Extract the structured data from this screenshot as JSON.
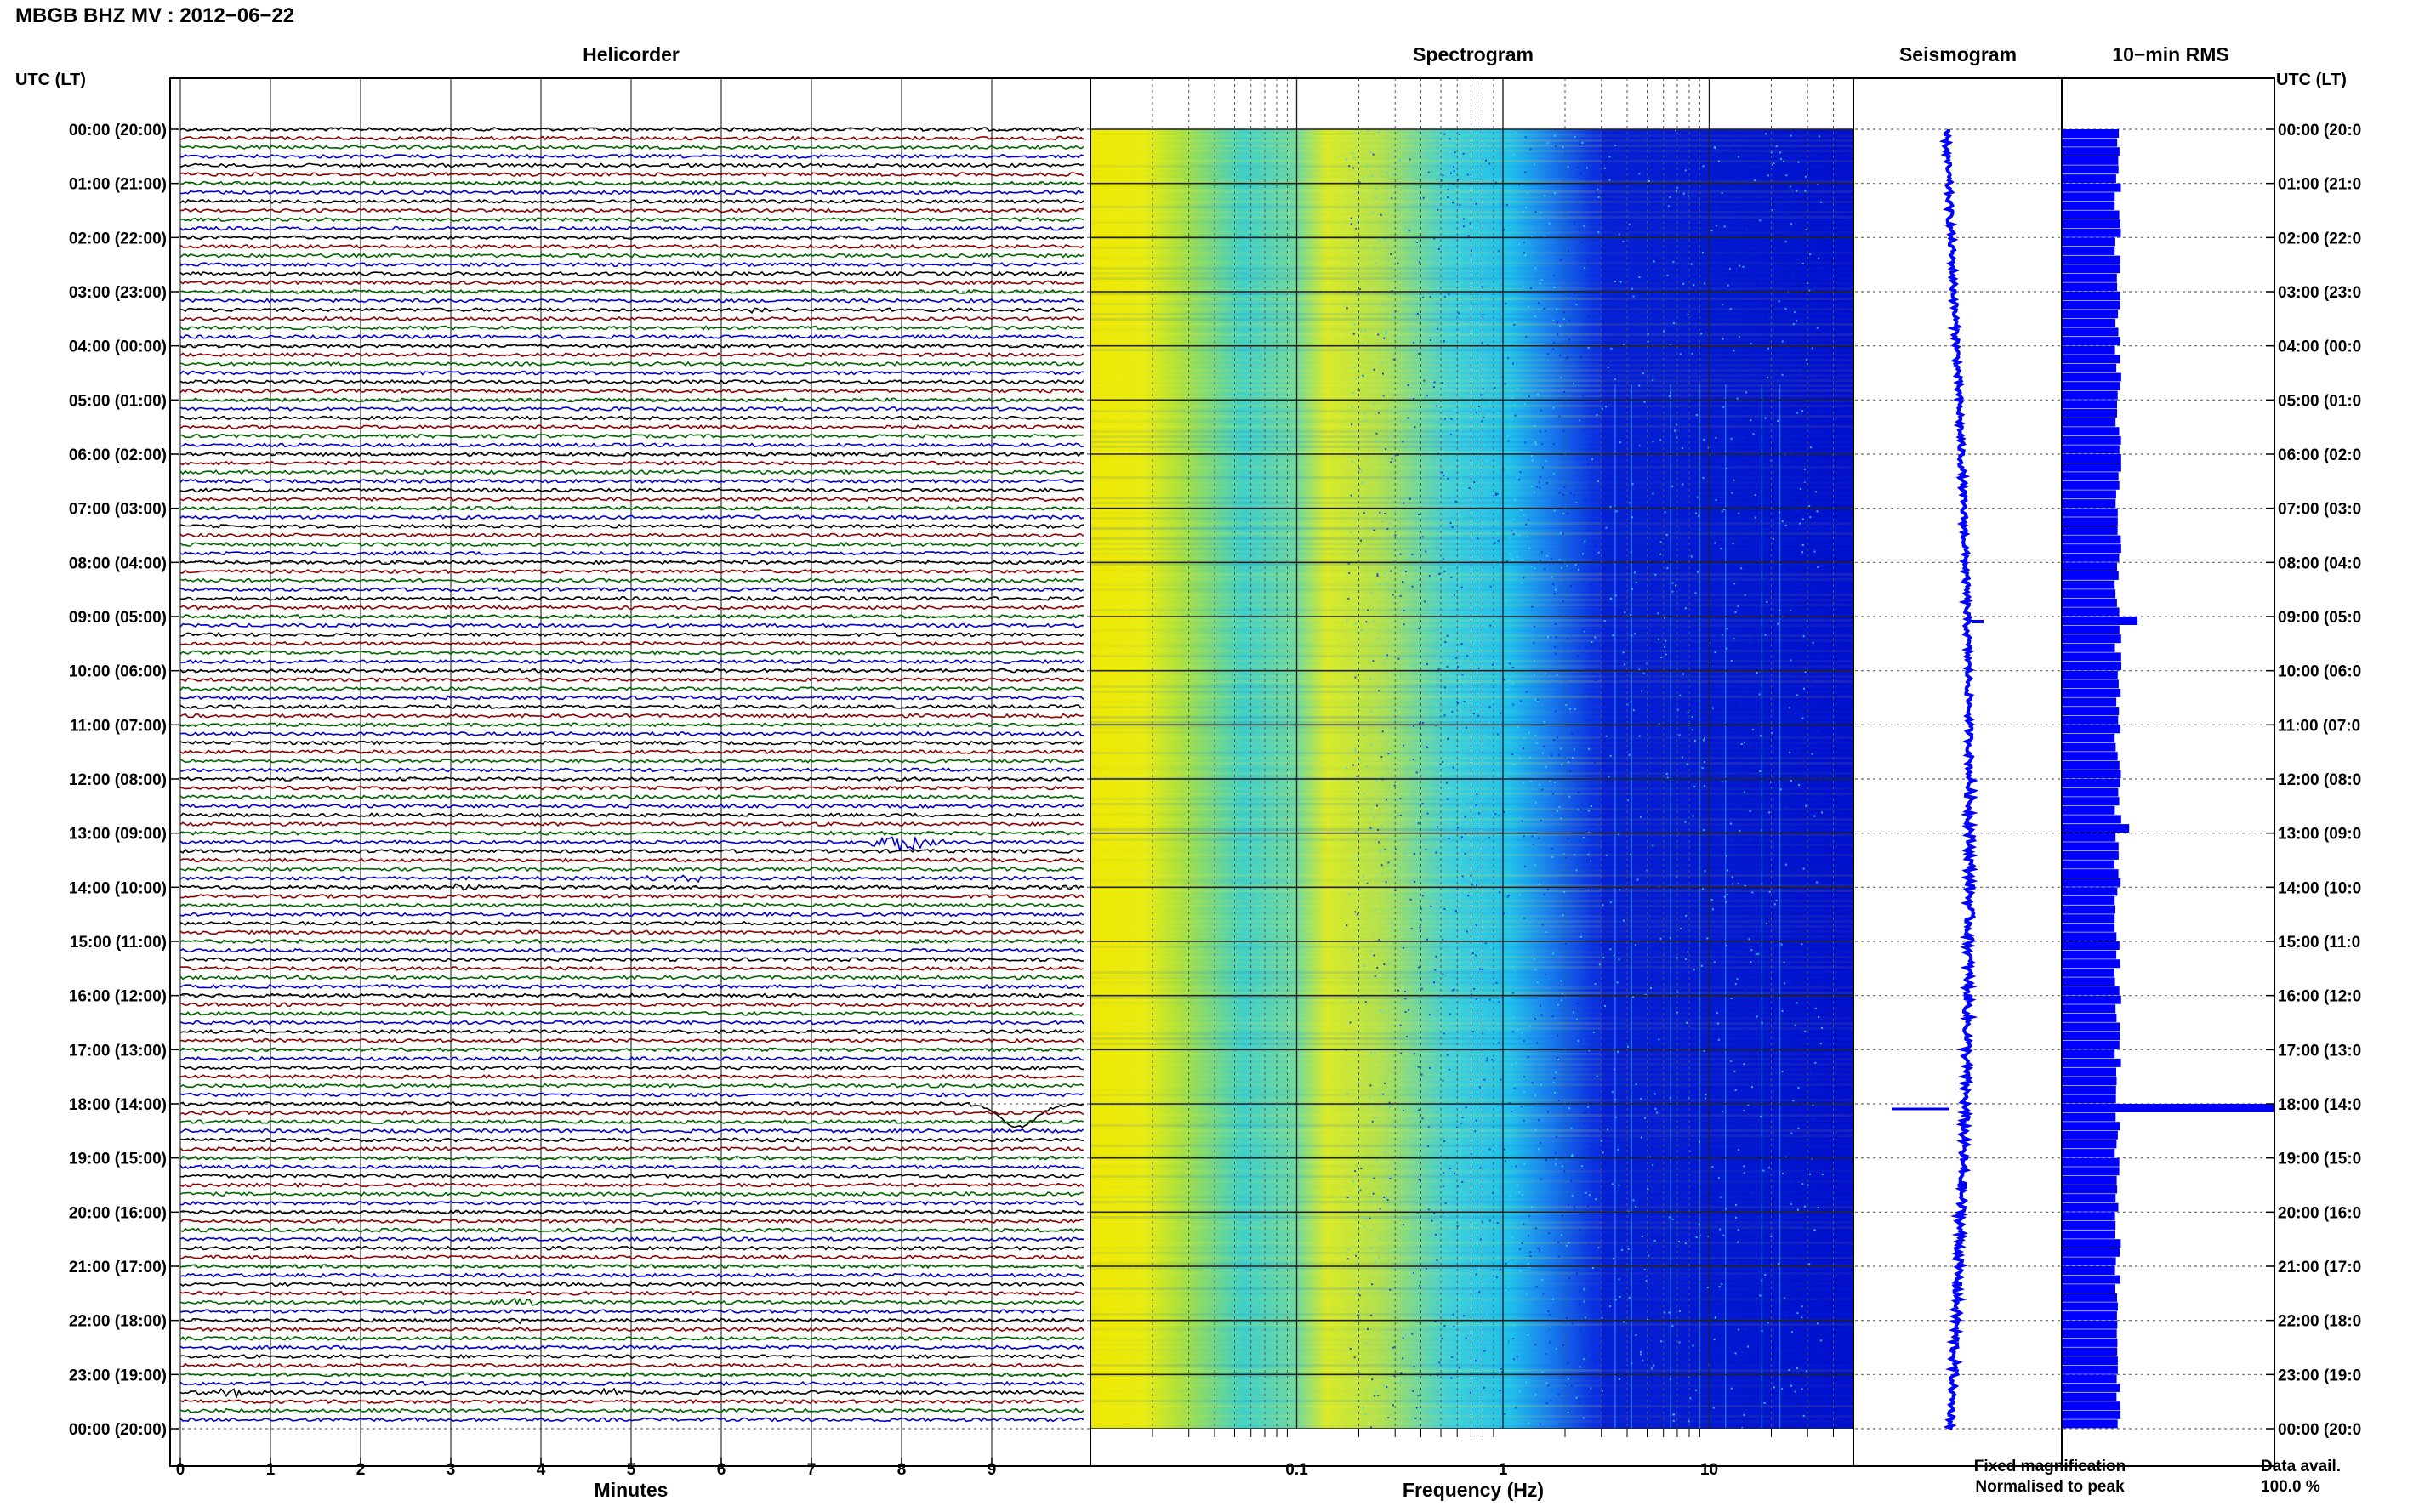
{
  "page_title": "MBGB BHZ MV : 2012−06−22",
  "time_axis_label_left": "UTC (LT)",
  "time_axis_label_right": "UTC (LT)",
  "panels": {
    "helicorder": "Helicorder",
    "spectrogram": "Spectrogram",
    "seismogram": "Seismogram",
    "rms": "10−min RMS"
  },
  "legend": {
    "fixed": "Fixed magnification",
    "normalised": "Normalised to peak",
    "fixed_color": "#0000ff",
    "normalised_color": "#ff0000"
  },
  "data_avail": {
    "label": "Data avail.",
    "value": "100.0 %"
  },
  "colors": {
    "trace_cycle": [
      "#000000",
      "#8b0000",
      "#006400",
      "#0000cd"
    ],
    "spectrogram_low": "#e8f000",
    "spectrogram_mid": "#20c8e0",
    "spectrogram_high": "#0018d8",
    "seismogram": "#0000ff",
    "rms": "#0000ff"
  },
  "chart_data": [
    {
      "type": "line",
      "name": "helicorder",
      "title": "Helicorder",
      "xlabel": "Minutes",
      "x_ticks": [
        0,
        1,
        2,
        3,
        4,
        5,
        6,
        7,
        8,
        9
      ],
      "xlim": [
        0,
        10
      ],
      "rows_per_hour": 6,
      "hours": 24,
      "events": [
        {
          "hour_row": 3.3,
          "minute": 6.5,
          "amplitude": 0.6
        },
        {
          "hour_row": 13.1,
          "minute": 8.0,
          "amplitude": 1.4
        },
        {
          "hour_row": 13.9,
          "minute": 5.5,
          "amplitude": 0.8
        },
        {
          "hour_row": 14.0,
          "minute": 3.0,
          "amplitude": 0.4
        },
        {
          "hour_row": 18.0,
          "minute": 9.3,
          "amplitude": -2.2
        },
        {
          "hour_row": 21.7,
          "minute": 3.8,
          "amplitude": 0.5
        },
        {
          "hour_row": 21.95,
          "minute": 3.6,
          "amplitude": 0.4
        },
        {
          "hour_row": 23.3,
          "minute": 0.6,
          "amplitude": 0.7
        },
        {
          "hour_row": 23.3,
          "minute": 4.8,
          "amplitude": 0.6
        }
      ]
    },
    {
      "type": "heatmap",
      "name": "spectrogram",
      "title": "Spectrogram",
      "xlabel": "Frequency (Hz)",
      "x_scale": "log",
      "x_tick_labels": [
        "0.1",
        "1",
        "10"
      ],
      "x_ticks": [
        0.1,
        1,
        10
      ],
      "xlim": [
        0.01,
        50
      ]
    },
    {
      "type": "line",
      "name": "seismogram",
      "title": "Seismogram",
      "spike_hour": 18.0
    },
    {
      "type": "bar",
      "name": "rms",
      "title": "10−min RMS",
      "peak_hours": [
        9.0,
        12.9,
        18.0
      ],
      "peak_values": [
        1.35,
        1.2,
        5.0
      ],
      "baseline": 1.0
    }
  ],
  "time_ticks": [
    {
      "utc": "00:00 (20:00)",
      "right": "00:00 (20:0"
    },
    {
      "utc": "01:00 (21:00)",
      "right": "01:00 (21:0"
    },
    {
      "utc": "02:00 (22:00)",
      "right": "02:00 (22:0"
    },
    {
      "utc": "03:00 (23:00)",
      "right": "03:00 (23:0"
    },
    {
      "utc": "04:00 (00:00)",
      "right": "04:00 (00:0"
    },
    {
      "utc": "05:00 (01:00)",
      "right": "05:00 (01:0"
    },
    {
      "utc": "06:00 (02:00)",
      "right": "06:00 (02:0"
    },
    {
      "utc": "07:00 (03:00)",
      "right": "07:00 (03:0"
    },
    {
      "utc": "08:00 (04:00)",
      "right": "08:00 (04:0"
    },
    {
      "utc": "09:00 (05:00)",
      "right": "09:00 (05:0"
    },
    {
      "utc": "10:00 (06:00)",
      "right": "10:00 (06:0"
    },
    {
      "utc": "11:00 (07:00)",
      "right": "11:00 (07:0"
    },
    {
      "utc": "12:00 (08:00)",
      "right": "12:00 (08:0"
    },
    {
      "utc": "13:00 (09:00)",
      "right": "13:00 (09:0"
    },
    {
      "utc": "14:00 (10:00)",
      "right": "14:00 (10:0"
    },
    {
      "utc": "15:00 (11:00)",
      "right": "15:00 (11:0"
    },
    {
      "utc": "16:00 (12:00)",
      "right": "16:00 (12:0"
    },
    {
      "utc": "17:00 (13:00)",
      "right": "17:00 (13:0"
    },
    {
      "utc": "18:00 (14:00)",
      "right": "18:00 (14:0"
    },
    {
      "utc": "19:00 (15:00)",
      "right": "19:00 (15:0"
    },
    {
      "utc": "20:00 (16:00)",
      "right": "20:00 (16:0"
    },
    {
      "utc": "21:00 (17:00)",
      "right": "21:00 (17:0"
    },
    {
      "utc": "22:00 (18:00)",
      "right": "22:00 (18:0"
    },
    {
      "utc": "23:00 (19:00)",
      "right": "23:00 (19:0"
    },
    {
      "utc": "00:00 (20:00)",
      "right": "00:00 (20:0"
    }
  ]
}
